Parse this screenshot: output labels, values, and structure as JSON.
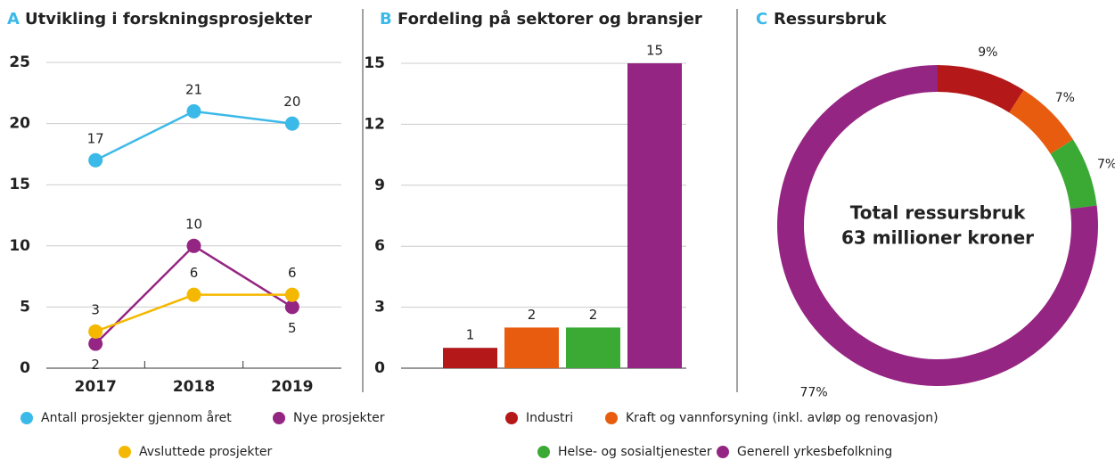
{
  "chart_data": [
    {
      "type": "line",
      "label": "A",
      "title": "Utvikling i forskningsprosjekter",
      "categories": [
        "2017",
        "2018",
        "2019"
      ],
      "series": [
        {
          "name": "Antall prosjekter gjennom året",
          "color": "#3bb9e8",
          "values": [
            17,
            21,
            20
          ]
        },
        {
          "name": "Nye prosjekter",
          "color": "#952582",
          "values": [
            2,
            10,
            5
          ]
        },
        {
          "name": "Avsluttede prosjekter",
          "color": "#f5b800",
          "values": [
            3,
            6,
            6
          ]
        }
      ],
      "ylim": [
        0,
        25
      ],
      "yticks": [
        0,
        5,
        10,
        15,
        20,
        25
      ],
      "grid": true
    },
    {
      "type": "bar",
      "label": "B",
      "title": "Fordeling på sektorer og bransjer",
      "categories": [
        "Industri",
        "Kraft og vannforsyning (inkl. avløp og renovasjon)",
        "Helse- og sosialtjenester",
        "Generell yrkesbefolkning"
      ],
      "colors": [
        "#b41818",
        "#e85c0f",
        "#3aaa35",
        "#952582"
      ],
      "values": [
        1,
        2,
        2,
        15
      ],
      "ylim": [
        0,
        15
      ],
      "yticks": [
        0,
        3,
        6,
        9,
        12,
        15
      ],
      "grid": true
    },
    {
      "type": "pie",
      "label": "C",
      "title": "Ressursbruk",
      "center_text": [
        "Total ressursbruk",
        "63 millioner kroner"
      ],
      "values": [
        9,
        7,
        7,
        77
      ],
      "value_labels": [
        "9%",
        "7%",
        "7%",
        "77%"
      ],
      "colors": [
        "#b41818",
        "#e85c0f",
        "#3aaa35",
        "#952582"
      ]
    }
  ]
}
